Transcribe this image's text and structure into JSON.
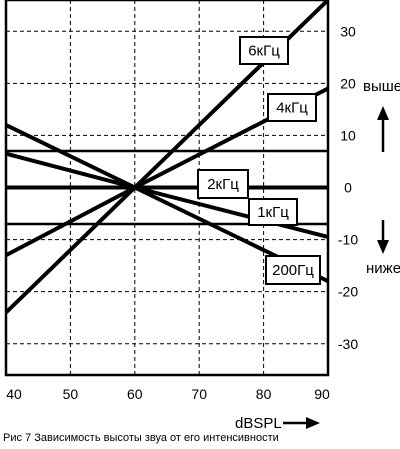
{
  "chart_data": {
    "type": "line",
    "xlabel": "dBSPL",
    "ylabel_up": "выше",
    "ylabel_down": "ниже",
    "xlim": [
      40,
      90
    ],
    "ylim": [
      -36,
      36
    ],
    "x_ticks": [
      40,
      50,
      60,
      70,
      80,
      90
    ],
    "y_ticks": [
      30,
      20,
      10,
      0,
      -10,
      -20,
      -30
    ],
    "grid": "dashed",
    "series": [
      {
        "name": "6кГц",
        "x": [
          40,
          60,
          90
        ],
        "y": [
          -24,
          0,
          36
        ]
      },
      {
        "name": "4кГц",
        "x": [
          40,
          60,
          90
        ],
        "y": [
          -13,
          0,
          19
        ]
      },
      {
        "name": "2кГц",
        "x": [
          40,
          60,
          90
        ],
        "y": [
          6.5,
          0,
          -9.5
        ]
      },
      {
        "name": "1кГц",
        "x": [
          40,
          60,
          90
        ],
        "y": [
          0,
          0,
          0
        ]
      },
      {
        "name": "200Гц",
        "x": [
          40,
          60,
          90
        ],
        "y": [
          12,
          0,
          -18
        ]
      }
    ],
    "reference_lines": [
      7,
      0,
      -7
    ]
  },
  "caption": "Рис 7 Зависимость высоты звуа от его интенсивности"
}
